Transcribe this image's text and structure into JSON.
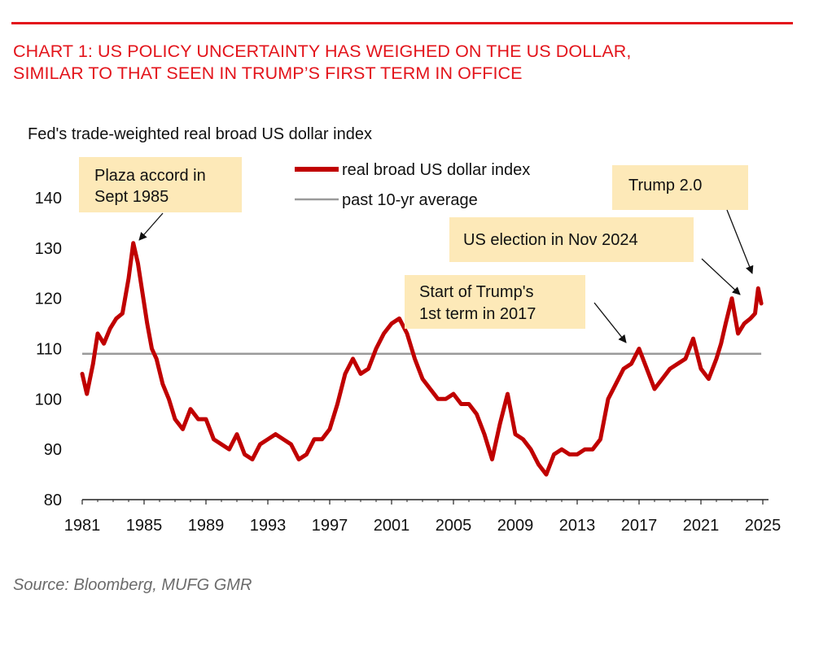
{
  "header": {
    "title_line1": "CHART 1: US POLICY UNCERTAINTY HAS WEIGHED ON THE US DOLLAR,",
    "title_line2": "SIMILAR TO THAT SEEN IN TRUMP’S FIRST TERM IN OFFICE"
  },
  "source": "Source: Bloomberg, MUFG GMR",
  "colors": {
    "accent": "#e3141b",
    "series_main": "#c00000",
    "series_avg": "#9a9a9a",
    "annotation_bg": "#fde9b8"
  },
  "chart_data": {
    "type": "line",
    "subtitle": "Fed's trade-weighted real broad US dollar index",
    "xlim": [
      1981,
      2025
    ],
    "ylim": [
      80,
      140
    ],
    "x_ticks": [
      1981,
      1985,
      1989,
      1993,
      1997,
      2001,
      2005,
      2009,
      2013,
      2017,
      2021,
      2025
    ],
    "y_ticks": [
      80,
      90,
      100,
      110,
      120,
      130,
      140
    ],
    "grid": false,
    "legend_position": "top-center",
    "series": [
      {
        "name": "real broad US dollar index",
        "x": [
          1981.0,
          1981.3,
          1981.7,
          1982.0,
          1982.4,
          1982.8,
          1983.2,
          1983.6,
          1984.0,
          1984.3,
          1984.6,
          1984.9,
          1985.2,
          1985.5,
          1985.8,
          1986.2,
          1986.6,
          1987.0,
          1987.5,
          1988.0,
          1988.5,
          1989.0,
          1989.5,
          1990.0,
          1990.5,
          1991.0,
          1991.5,
          1992.0,
          1992.5,
          1993.0,
          1993.5,
          1994.0,
          1994.5,
          1995.0,
          1995.5,
          1996.0,
          1996.5,
          1997.0,
          1997.5,
          1998.0,
          1998.5,
          1999.0,
          1999.5,
          2000.0,
          2000.5,
          2001.0,
          2001.5,
          2002.0,
          2002.5,
          2003.0,
          2003.5,
          2004.0,
          2004.5,
          2005.0,
          2005.5,
          2006.0,
          2006.5,
          2007.0,
          2007.5,
          2008.0,
          2008.5,
          2009.0,
          2009.5,
          2010.0,
          2010.5,
          2011.0,
          2011.5,
          2012.0,
          2012.5,
          2013.0,
          2013.5,
          2014.0,
          2014.5,
          2015.0,
          2015.5,
          2016.0,
          2016.5,
          2017.0,
          2017.5,
          2018.0,
          2018.5,
          2019.0,
          2019.5,
          2020.0,
          2020.5,
          2021.0,
          2021.5,
          2022.0,
          2022.3,
          2022.6,
          2023.0,
          2023.4,
          2023.8,
          2024.2,
          2024.5,
          2024.7,
          2024.9
        ],
        "y": [
          105,
          101,
          107,
          113,
          111,
          114,
          116,
          117,
          124,
          131,
          127,
          121,
          115,
          110,
          108,
          103,
          100,
          96,
          94,
          98,
          96,
          96,
          92,
          91,
          90,
          93,
          89,
          88,
          91,
          92,
          93,
          92,
          91,
          88,
          89,
          92,
          92,
          94,
          99,
          105,
          108,
          105,
          106,
          110,
          113,
          115,
          116,
          113,
          108,
          104,
          102,
          100,
          100,
          101,
          99,
          99,
          97,
          93,
          88,
          95,
          101,
          93,
          92,
          90,
          87,
          85,
          89,
          90,
          89,
          89,
          90,
          90,
          92,
          100,
          103,
          106,
          107,
          110,
          106,
          102,
          104,
          106,
          107,
          108,
          112,
          106,
          104,
          108,
          111,
          115,
          120,
          113,
          115,
          116,
          117,
          122,
          119
        ]
      },
      {
        "name": "past 10-yr average",
        "x": [
          1981,
          2024.9
        ],
        "y": [
          109,
          109
        ]
      }
    ],
    "annotations": [
      {
        "text_line1": "Plaza accord in",
        "text_line2": "Sept 1985",
        "x": 1984.8,
        "y": 132
      },
      {
        "text_line1": "Start of Trump's",
        "text_line2": "1st term in 2017",
        "x": 2016.4,
        "y": 110
      },
      {
        "text_line1": "US election in Nov 2024",
        "text_line2": "",
        "x": 2024.1,
        "y": 120
      },
      {
        "text_line1": "Trump 2.0",
        "text_line2": "",
        "x": 2024.8,
        "y": 123
      }
    ]
  }
}
